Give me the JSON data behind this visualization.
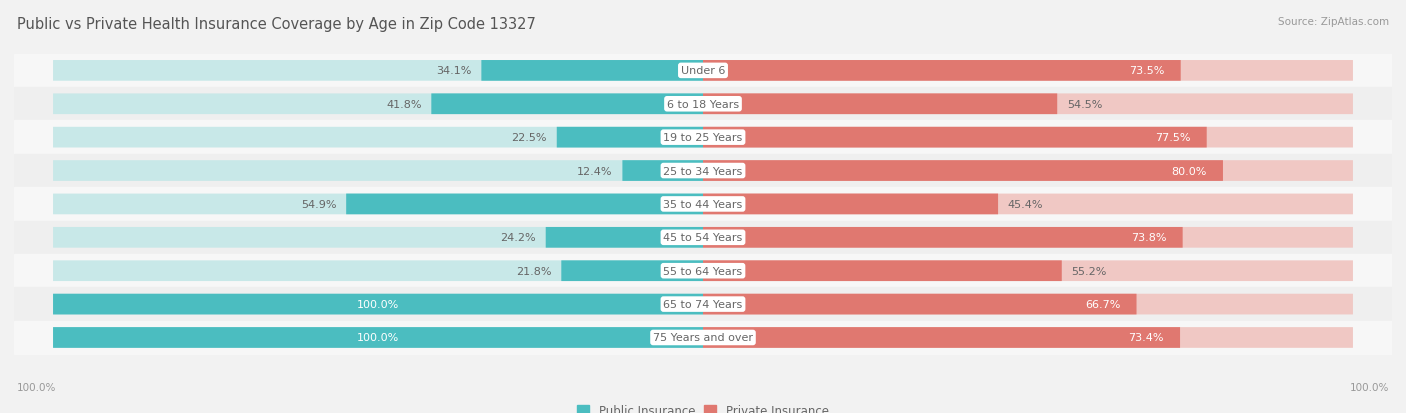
{
  "title": "Public vs Private Health Insurance Coverage by Age in Zip Code 13327",
  "source": "Source: ZipAtlas.com",
  "categories": [
    "Under 6",
    "6 to 18 Years",
    "19 to 25 Years",
    "25 to 34 Years",
    "35 to 44 Years",
    "45 to 54 Years",
    "55 to 64 Years",
    "65 to 74 Years",
    "75 Years and over"
  ],
  "public_values": [
    34.1,
    41.8,
    22.5,
    12.4,
    54.9,
    24.2,
    21.8,
    100.0,
    100.0
  ],
  "private_values": [
    73.5,
    54.5,
    77.5,
    80.0,
    45.4,
    73.8,
    55.2,
    66.7,
    73.4
  ],
  "public_color": "#4BBDC0",
  "private_color": "#E07870",
  "public_color_light": "#C8E8E8",
  "private_color_light": "#F0C8C4",
  "row_bg_odd": "#F7F7F7",
  "row_bg_even": "#EFEFEF",
  "fig_bg": "#F2F2F2",
  "title_color": "#555555",
  "source_color": "#999999",
  "label_color": "#666666",
  "value_color_dark": "#666666",
  "value_color_light": "#FFFFFF",
  "title_fontsize": 10.5,
  "label_fontsize": 8.0,
  "value_fontsize": 8.0,
  "source_fontsize": 7.5,
  "axis_fontsize": 7.5,
  "figsize": [
    14.06,
    4.14
  ],
  "dpi": 100
}
